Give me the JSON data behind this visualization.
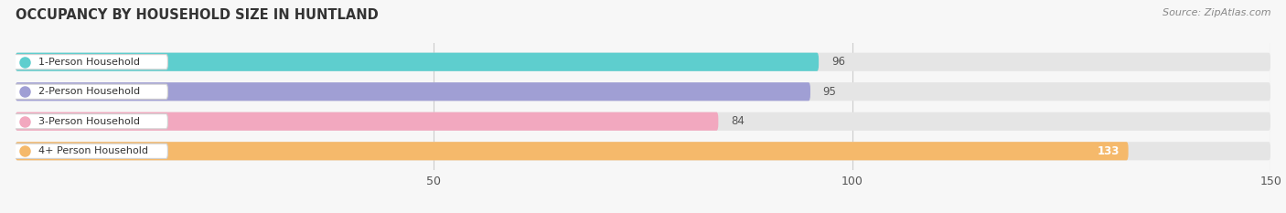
{
  "title": "OCCUPANCY BY HOUSEHOLD SIZE IN HUNTLAND",
  "source": "Source: ZipAtlas.com",
  "categories": [
    "1-Person Household",
    "2-Person Household",
    "3-Person Household",
    "4+ Person Household"
  ],
  "values": [
    96,
    95,
    84,
    133
  ],
  "bar_colors": [
    "#5ecece",
    "#a09fd4",
    "#f2a8bf",
    "#f5b96b"
  ],
  "bar_bg_color": "#e5e5e5",
  "xlim": [
    0,
    150
  ],
  "xticks": [
    50,
    100,
    150
  ],
  "figsize": [
    14.06,
    2.33
  ],
  "dpi": 100,
  "bg_color": "#f7f7f7"
}
